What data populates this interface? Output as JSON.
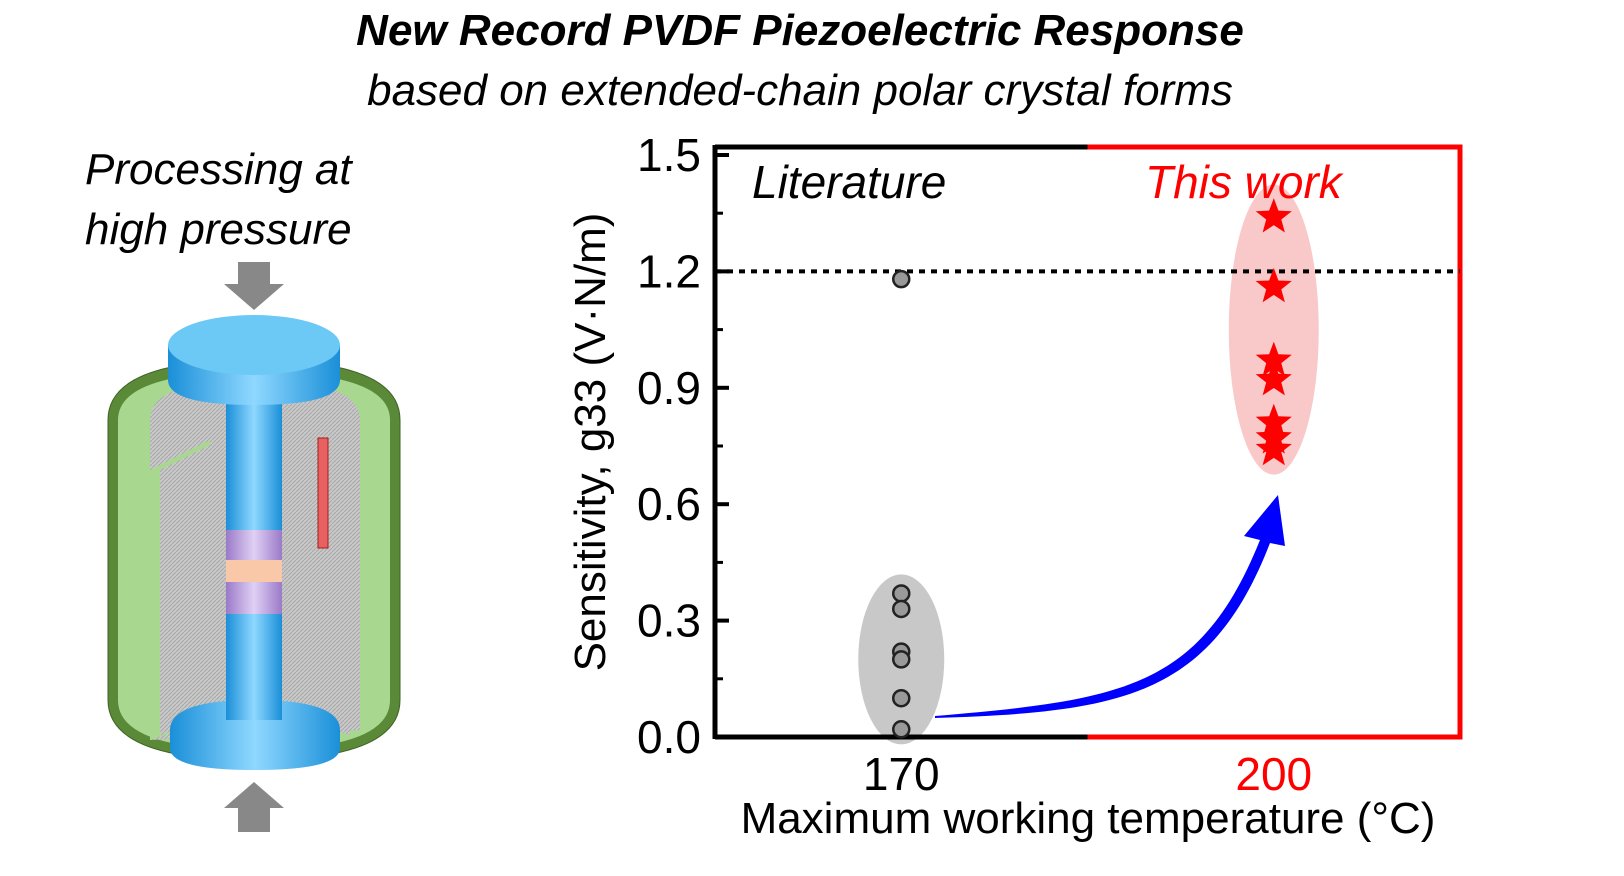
{
  "header": {
    "title": "New Record PVDF Piezoelectric Response",
    "subtitle": "based on extended-chain polar crystal forms"
  },
  "illustration": {
    "caption_line1": "Processing at",
    "caption_line2": "high pressure"
  },
  "colors": {
    "literature": "#000000",
    "this_work": "#ff0000",
    "arrow": "#0000ff"
  },
  "chart_data": {
    "type": "scatter",
    "xlabel": "Maximum working temperature (°C)",
    "ylabel": "Sensitivity, g33 (V·N/m)",
    "xlim": [
      155,
      215
    ],
    "ylim": [
      0,
      1.5
    ],
    "x_ticks": [
      "170",
      "200"
    ],
    "y_ticks": [
      "0.0",
      "0.3",
      "0.6",
      "0.9",
      "1.2",
      "1.5"
    ],
    "reference_line": 1.2,
    "region_boundary": 185,
    "series": [
      {
        "name": "Literature",
        "x": 170,
        "values": [
          1.18,
          0.37,
          0.33,
          0.22,
          0.2,
          0.1,
          0.02
        ]
      },
      {
        "name": "This work",
        "x": 200,
        "values": [
          1.34,
          1.16,
          0.97,
          0.92,
          0.81,
          0.77,
          0.74
        ]
      }
    ]
  }
}
